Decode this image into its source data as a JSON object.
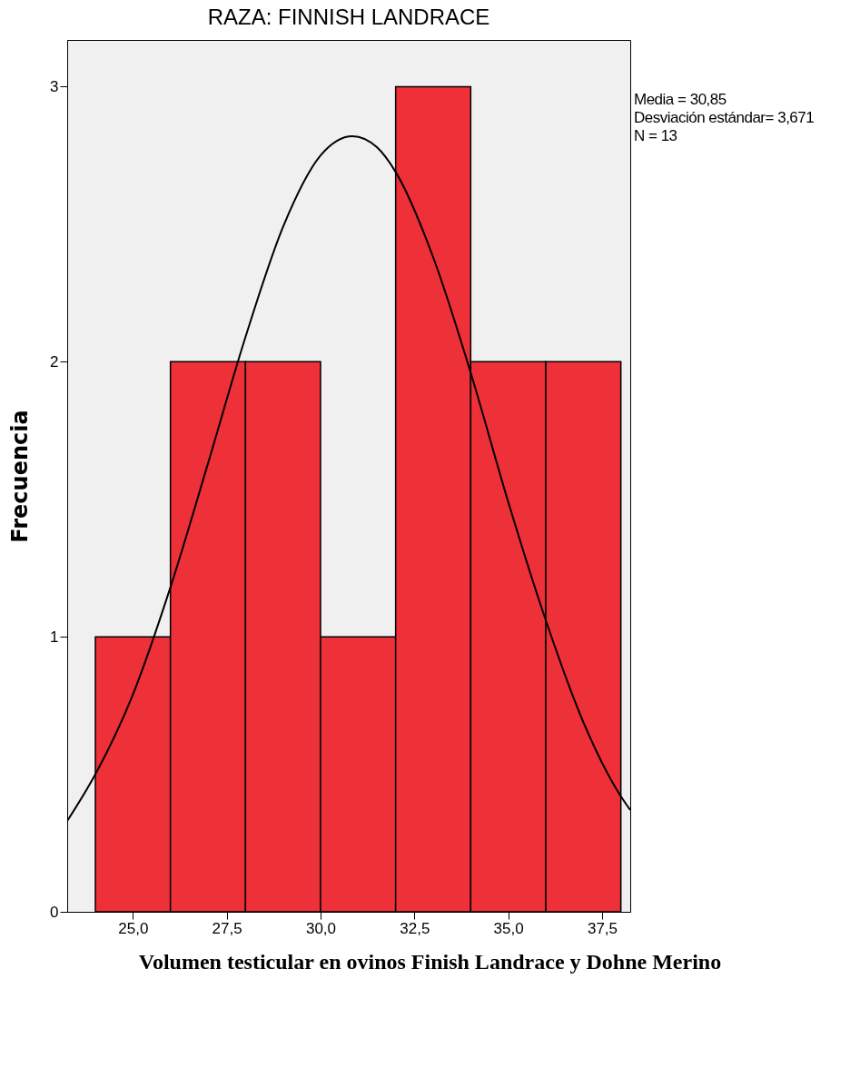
{
  "chart_data": {
    "type": "histogram",
    "title": "RAZA: FINNISH LANDRACE",
    "ylabel": "Frecuencia",
    "bins": [
      24,
      26,
      28,
      30,
      32,
      34,
      36,
      38
    ],
    "values": [
      1,
      2,
      2,
      1,
      3,
      2,
      2
    ],
    "color": "#ee3038",
    "series": [
      {
        "type": "line",
        "color": "#000000",
        "x": [
          23.25,
          24,
          25,
          26,
          27,
          28,
          29,
          30,
          30.85,
          31.5,
          32,
          33,
          34,
          35,
          36,
          37,
          38,
          38.25
        ],
        "values": [
          0.33,
          0.5,
          0.79,
          1.18,
          1.63,
          2.09,
          2.49,
          2.75,
          2.82,
          2.78,
          2.69,
          2.38,
          1.96,
          1.49,
          1.06,
          0.69,
          0.42,
          0.37
        ]
      }
    ],
    "xlim": [
      23.25,
      38.25
    ],
    "xticks": [
      {
        "value": 25,
        "label": "25,0"
      },
      {
        "value": 27.5,
        "label": "27,5"
      },
      {
        "value": 30,
        "label": "30,0"
      },
      {
        "value": 32.5,
        "label": "32,5"
      },
      {
        "value": 35,
        "label": "35,0"
      },
      {
        "value": 37.5,
        "label": "37,5"
      }
    ],
    "ylim": [
      0,
      3.17
    ],
    "yticks": [
      0,
      1,
      2,
      3
    ],
    "grid": false,
    "annotations": [
      "Media = 30,85",
      "Desviación estándar= 3,671",
      "N = 13",
      "Volumen testicular en ovinos Finish Landrace y Dohne Merino"
    ]
  }
}
